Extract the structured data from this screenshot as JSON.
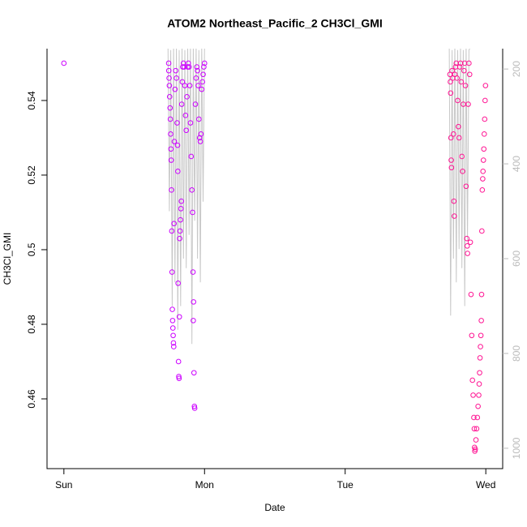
{
  "chart_data": {
    "type": "scatter",
    "title": "ATOM2 Northeast_Pacific_2 CH3Cl_GMI",
    "xlabel": "Date",
    "ylabel": "CH3Cl_GMI",
    "xlim": [
      -0.12,
      3.12
    ],
    "xticks": [
      {
        "value": 0,
        "label": "Sun"
      },
      {
        "value": 1,
        "label": "Mon"
      },
      {
        "value": 2,
        "label": "Tue"
      },
      {
        "value": 3,
        "label": "Wed"
      }
    ],
    "ylim": [
      0.4413,
      0.5539
    ],
    "yticks": [
      0.46,
      0.48,
      0.5,
      0.52,
      0.54
    ],
    "y2lim": [
      1043,
      157
    ],
    "y2ticks": [
      200,
      400,
      600,
      800,
      1000
    ],
    "y2color": "#bbbbbb",
    "series": [
      {
        "color": "#cc00ff",
        "x": [
          0,
          0.745,
          0.746,
          0.748,
          0.75,
          0.752,
          0.755,
          0.757,
          0.759,
          0.761,
          0.763,
          0.765,
          0.767,
          0.769,
          0.771,
          0.773,
          0.775,
          0.777,
          0.779,
          0.781,
          0.783,
          0.785,
          0.79,
          0.795,
          0.8,
          0.805,
          0.808,
          0.81,
          0.812,
          0.815,
          0.817,
          0.819,
          0.821,
          0.823,
          0.826,
          0.829,
          0.832,
          0.835,
          0.838,
          0.842,
          0.845,
          0.85,
          0.855,
          0.86,
          0.865,
          0.87,
          0.875,
          0.88,
          0.885,
          0.89,
          0.895,
          0.9,
          0.905,
          0.91,
          0.915,
          0.918,
          0.92,
          0.922,
          0.925,
          0.928,
          0.93,
          0.935,
          0.94,
          0.945,
          0.95,
          0.955,
          0.96,
          0.965,
          0.97,
          0.975,
          0.98,
          0.985,
          0.99,
          0.995,
          1.0
        ],
        "values": [
          0.55,
          0.55,
          0.548,
          0.546,
          0.544,
          0.541,
          0.538,
          0.535,
          0.531,
          0.527,
          0.524,
          0.516,
          0.505,
          0.494,
          0.484,
          0.481,
          0.479,
          0.477,
          0.475,
          0.474,
          0.507,
          0.529,
          0.543,
          0.548,
          0.546,
          0.534,
          0.528,
          0.521,
          0.491,
          0.47,
          0.466,
          0.4655,
          0.482,
          0.503,
          0.505,
          0.508,
          0.511,
          0.513,
          0.539,
          0.545,
          0.549,
          0.55,
          0.549,
          0.544,
          0.536,
          0.532,
          0.541,
          0.549,
          0.55,
          0.549,
          0.544,
          0.534,
          0.525,
          0.516,
          0.51,
          0.494,
          0.481,
          0.486,
          0.467,
          0.458,
          0.4575,
          0.539,
          0.546,
          0.549,
          0.548,
          0.544,
          0.535,
          0.53,
          0.529,
          0.531,
          0.543,
          0.545,
          0.547,
          0.549,
          0.55
        ]
      },
      {
        "color": "#ff1493",
        "x": [
          2.745,
          2.748,
          2.75,
          2.752,
          2.754,
          2.756,
          2.76,
          2.765,
          2.77,
          2.773,
          2.776,
          2.78,
          2.785,
          2.79,
          2.795,
          2.8,
          2.805,
          2.81,
          2.815,
          2.82,
          2.825,
          2.83,
          2.835,
          2.84,
          2.845,
          2.85,
          2.855,
          2.86,
          2.865,
          2.868,
          2.87,
          2.875,
          2.88,
          2.885,
          2.89,
          2.895,
          2.9,
          2.905,
          2.91,
          2.915,
          2.918,
          2.92,
          2.922,
          2.925,
          2.93,
          2.935,
          2.94,
          2.945,
          2.95,
          2.953,
          2.956,
          2.959,
          2.962,
          2.965,
          2.968,
          2.97,
          2.972,
          2.975,
          2.978,
          2.98,
          2.983,
          2.986,
          2.989,
          2.992,
          2.995,
          2.998
        ],
        "values": [
          0.547,
          0.545,
          0.542,
          0.53,
          0.524,
          0.522,
          0.548,
          0.546,
          0.531,
          0.513,
          0.509,
          0.547,
          0.549,
          0.55,
          0.546,
          0.54,
          0.533,
          0.53,
          0.549,
          0.55,
          0.545,
          0.525,
          0.521,
          0.539,
          0.548,
          0.55,
          0.544,
          0.517,
          0.503,
          0.501,
          0.499,
          0.539,
          0.55,
          0.547,
          0.502,
          0.488,
          0.477,
          0.465,
          0.461,
          0.455,
          0.452,
          0.447,
          0.446,
          0.4465,
          0.449,
          0.452,
          0.455,
          0.458,
          0.461,
          0.464,
          0.467,
          0.471,
          0.474,
          0.477,
          0.481,
          0.488,
          0.505,
          0.516,
          0.519,
          0.521,
          0.524,
          0.527,
          0.531,
          0.535,
          0.54,
          0.544
        ]
      },
      {
        "type": "line",
        "axis": "y2",
        "color": "#c8c8c8",
        "x": [
          0.74,
          0.75,
          0.76,
          0.77,
          0.78,
          0.79,
          0.8,
          0.81,
          0.82,
          0.83,
          0.84,
          0.85,
          0.86,
          0.87,
          0.88,
          0.89,
          0.9,
          0.91,
          0.92,
          0.93,
          0.94,
          0.95,
          0.96,
          0.97,
          0.98,
          0.99,
          1.0,
          null,
          2.74,
          2.75,
          2.76,
          2.77,
          2.78,
          2.79,
          2.8,
          2.81,
          2.82,
          2.83,
          2.84,
          2.85,
          2.86,
          2.87,
          2.88,
          2.9
        ],
        "values": [
          150,
          500,
          160,
          700,
          150,
          650,
          150,
          750,
          160,
          700,
          150,
          600,
          160,
          620,
          150,
          550,
          150,
          780,
          150,
          520,
          150,
          600,
          160,
          650,
          150,
          480,
          150,
          null,
          150,
          720,
          160,
          600,
          150,
          650,
          160,
          580,
          150,
          620,
          160,
          700,
          150,
          560,
          160,
          150
        ]
      }
    ]
  }
}
